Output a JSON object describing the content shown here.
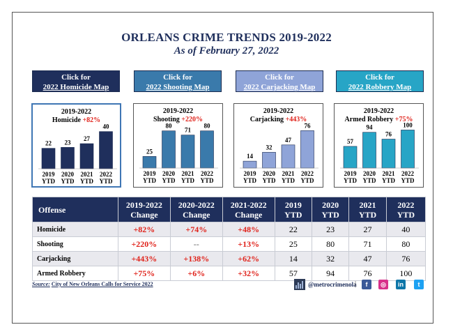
{
  "header": {
    "title": "ORLEANS CRIME TRENDS 2019-2022",
    "subtitle": "As of February 27, 2022"
  },
  "buttons": [
    {
      "line1": "Click for",
      "line2": "2022 Homicide Map",
      "color": "#1f2f5c"
    },
    {
      "line1": "Click for",
      "line2": "2022 Shooting Map",
      "color": "#3a7aab"
    },
    {
      "line1": "Click for",
      "line2": "2022 Carjacking Map",
      "color": "#8fa4d8"
    },
    {
      "line1": "Click for",
      "line2": "2022 Robbery Map",
      "color": "#27a5c6"
    }
  ],
  "chart_data": [
    {
      "type": "bar",
      "title": "2019-2022",
      "label": "Homicide",
      "pct": "+82%",
      "categories": [
        "2019\nYTD",
        "2020\nYTD",
        "2021\nYTD",
        "2022\nYTD"
      ],
      "values": [
        22,
        23,
        27,
        40
      ],
      "color": "#1f2f5c",
      "ylim": [
        0,
        45
      ]
    },
    {
      "type": "bar",
      "title": "2019-2022",
      "label": "Shooting",
      "pct": "+220%",
      "categories": [
        "2019\nYTD",
        "2020\nYTD",
        "2021\nYTD",
        "2022\nYTD"
      ],
      "values": [
        25,
        80,
        71,
        80
      ],
      "color": "#3a7aab",
      "ylim": [
        0,
        90
      ]
    },
    {
      "type": "bar",
      "title": "2019-2022",
      "label": "Carjacking",
      "pct": "+443%",
      "categories": [
        "2019\nYTD",
        "2020\nYTD",
        "2021\nYTD",
        "2022\nYTD"
      ],
      "values": [
        14,
        32,
        47,
        76
      ],
      "color": "#8fa4d8",
      "ylim": [
        0,
        85
      ]
    },
    {
      "type": "bar",
      "title": "2019-2022",
      "label": "Armed Robbery",
      "pct": "+75%",
      "categories": [
        "2019\nYTD",
        "2020\nYTD",
        "2021\nYTD",
        "2022\nYTD"
      ],
      "values": [
        57,
        94,
        76,
        100
      ],
      "color": "#27a5c6",
      "ylim": [
        0,
        110
      ]
    }
  ],
  "table": {
    "headers": [
      {
        "l1": "Offense",
        "l2": ""
      },
      {
        "l1": "2019-2022",
        "l2": "Change"
      },
      {
        "l1": "2020-2022",
        "l2": "Change"
      },
      {
        "l1": "2021-2022",
        "l2": "Change"
      },
      {
        "l1": "2019",
        "l2": "YTD"
      },
      {
        "l1": "2020",
        "l2": "YTD"
      },
      {
        "l1": "2021",
        "l2": "YTD"
      },
      {
        "l1": "2022",
        "l2": "YTD"
      }
    ],
    "rows": [
      {
        "offense": "Homicide",
        "c1": "+82%",
        "c2": "+74%",
        "c3": "+48%",
        "y2019": "22",
        "y2020": "23",
        "y2021": "27",
        "y2022": "40"
      },
      {
        "offense": "Shooting",
        "c1": "+220%",
        "c2": "--",
        "c3": "+13%",
        "y2019": "25",
        "y2020": "80",
        "y2021": "71",
        "y2022": "80"
      },
      {
        "offense": "Carjacking",
        "c1": "+443%",
        "c2": "+138%",
        "c3": "+62%",
        "y2019": "14",
        "y2020": "32",
        "y2021": "47",
        "y2022": "76"
      },
      {
        "offense": "Armed Robbery",
        "c1": "+75%",
        "c2": "+6%",
        "c3": "+32%",
        "y2019": "57",
        "y2020": "94",
        "y2021": "76",
        "y2022": "100"
      }
    ]
  },
  "footer": {
    "source_label": "Source:",
    "source_text": "City of New Orleans Calls for Service 2022",
    "handle": "@metrocrimenola",
    "separator": "|",
    "social": [
      {
        "name": "facebook-icon",
        "glyph": "f",
        "color": "#3b5998"
      },
      {
        "name": "instagram-icon",
        "glyph": "◎",
        "color": "#d8308a"
      },
      {
        "name": "linkedin-icon",
        "glyph": "in",
        "color": "#0e76a8"
      },
      {
        "name": "twitter-icon",
        "glyph": "t",
        "color": "#1da1f2"
      }
    ]
  }
}
